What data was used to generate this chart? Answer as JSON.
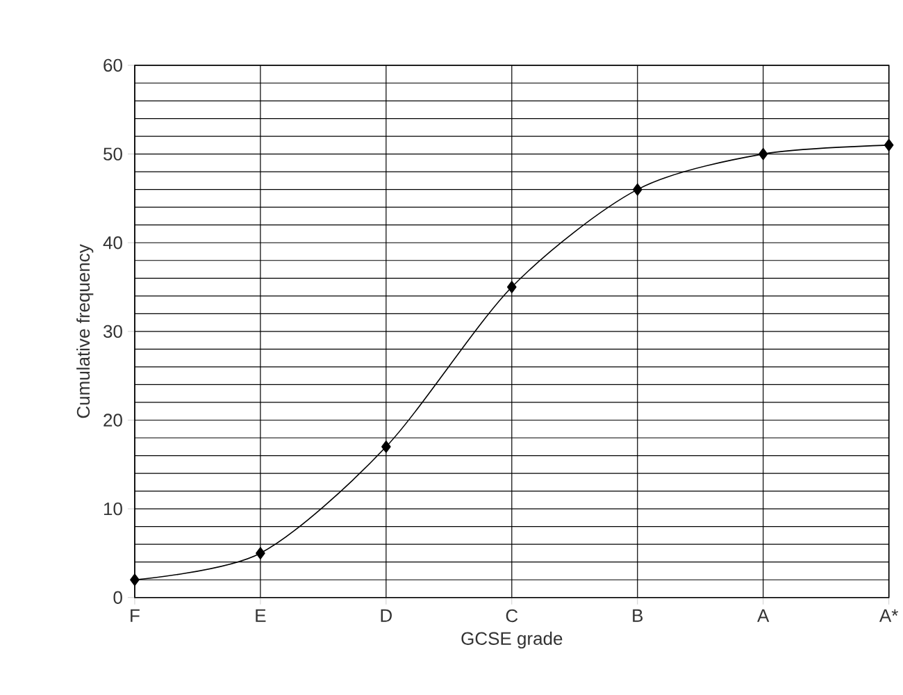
{
  "chart_data": {
    "type": "line",
    "xlabel": "GCSE grade",
    "ylabel": "Cumulative frequency",
    "categories": [
      "F",
      "E",
      "D",
      "C",
      "B",
      "A",
      "A*"
    ],
    "series": [
      {
        "color": "#000000",
        "values": [
          2,
          5,
          17,
          35,
          46,
          50,
          51
        ]
      }
    ],
    "ylim": [
      0,
      60
    ],
    "yticks": [
      0,
      10,
      20,
      30,
      40,
      50,
      60
    ],
    "grid": true,
    "marker": "diamond",
    "line_style": "solid"
  }
}
